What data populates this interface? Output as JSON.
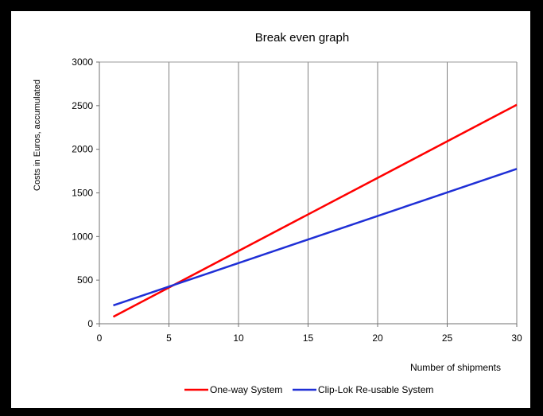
{
  "chart_data": {
    "type": "line",
    "title": "Break even graph",
    "xlabel": "Number of shipments",
    "ylabel": "Costs in Euros, accumulated",
    "x": [
      1,
      30
    ],
    "xlim": [
      0,
      30
    ],
    "ylim": [
      0,
      3000
    ],
    "xticks": [
      0,
      5,
      10,
      15,
      20,
      25,
      30
    ],
    "yticks": [
      0,
      500,
      1000,
      1500,
      2000,
      2500,
      3000
    ],
    "xtick_labels": [
      "0",
      "5",
      "10",
      "15",
      "20",
      "25",
      "30"
    ],
    "ytick_labels": [
      "0",
      "500",
      "1000",
      "1500",
      "2000",
      "2500",
      "3000"
    ],
    "grid": "vertical",
    "legend_position": "bottom",
    "series": [
      {
        "name": "One-way System",
        "color": "#ff0000",
        "x": [
          1,
          30
        ],
        "values": [
          80,
          2510
        ]
      },
      {
        "name": "Clip-Lok Re-usable System",
        "color": "#1f2fd6",
        "x": [
          1,
          30
        ],
        "values": [
          210,
          1775
        ]
      }
    ]
  }
}
